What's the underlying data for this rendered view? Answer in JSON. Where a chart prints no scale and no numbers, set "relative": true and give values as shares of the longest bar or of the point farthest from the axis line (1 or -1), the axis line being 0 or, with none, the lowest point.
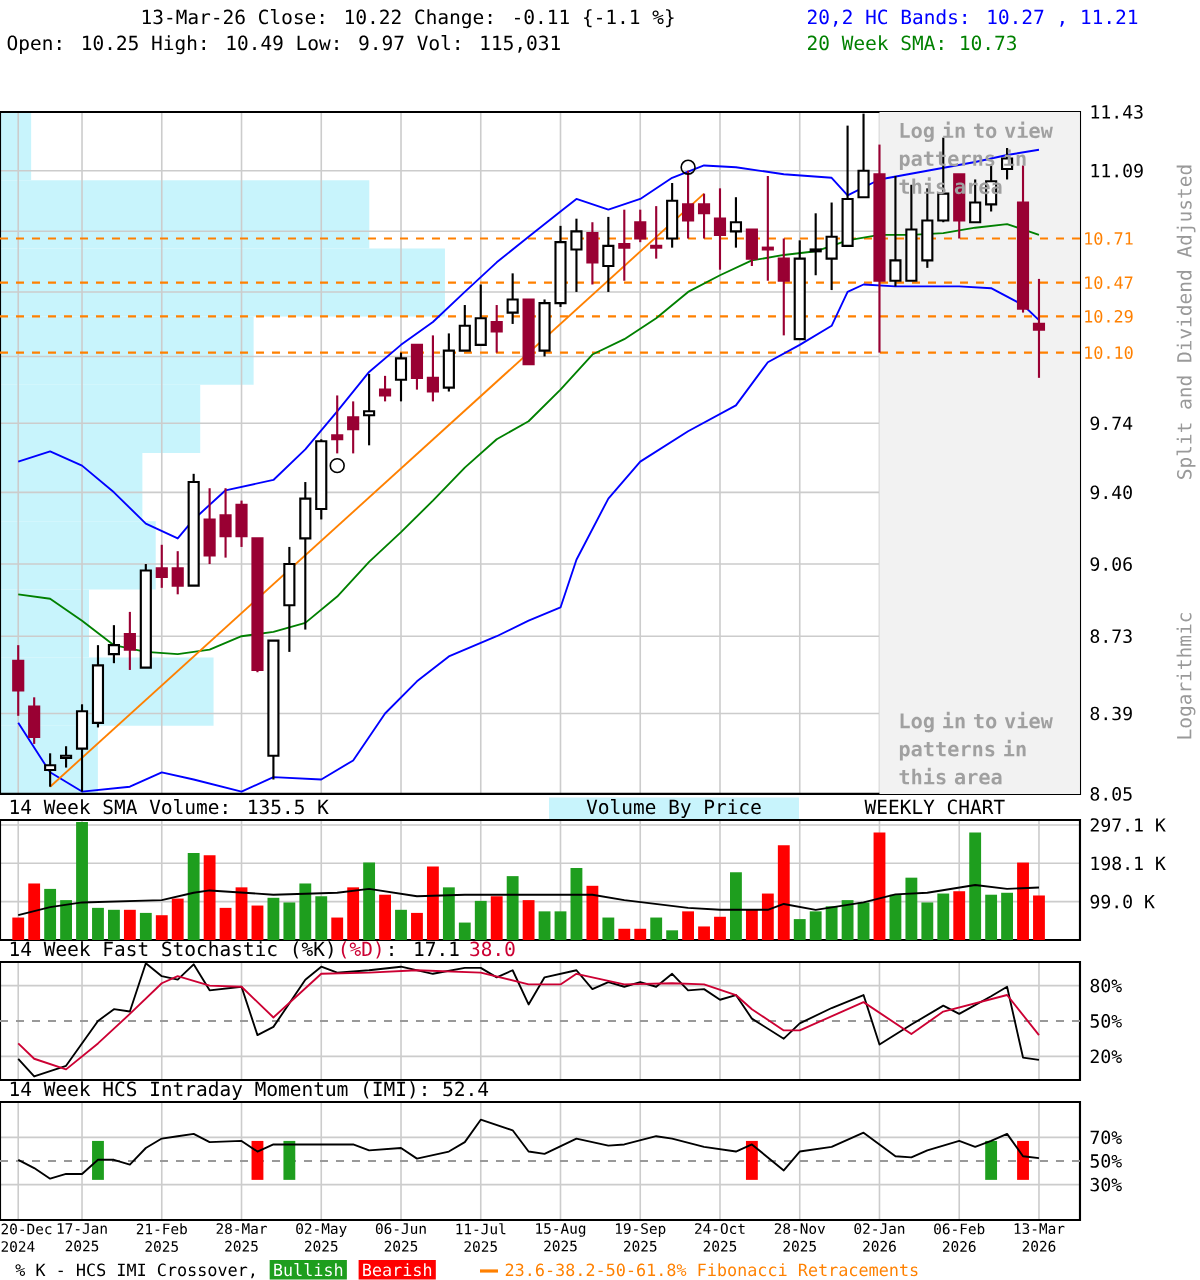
{
  "chart_data": [
    {
      "type": "candlestick",
      "title": "13-Mar-26 Close: 10.22 Change: -0.11 {-1.1 %}",
      "subtitle": "Open: 10.25 High: 10.49 Low: 9.97 Vol: 115,031",
      "ylabel": "Split and Dividend Adjusted",
      "annotations": [
        "Log in to view patterns in this area",
        "Logarithmic"
      ],
      "log": true,
      "grid": true,
      "tick_labels": "y",
      "xlim": [
        "2024-12-12",
        "2026-03-31"
      ],
      "xticks": [
        {
          "value": "2024-12-20",
          "label": null
        },
        {
          "value": "2025-01-17",
          "label": null
        },
        {
          "value": "2025-02-21",
          "label": null
        },
        {
          "value": "2025-03-28",
          "label": null
        },
        {
          "value": "2025-05-02",
          "label": null
        },
        {
          "value": "2025-06-06",
          "label": null
        },
        {
          "value": "2025-07-11",
          "label": null
        },
        {
          "value": "2025-08-15",
          "label": null
        },
        {
          "value": "2025-09-19",
          "label": null
        },
        {
          "value": "2025-10-24",
          "label": null
        },
        {
          "value": "2025-11-28",
          "label": null
        },
        {
          "value": "2026-01-02",
          "label": null
        },
        {
          "value": "2026-02-06",
          "label": null
        },
        {
          "value": "2026-03-13",
          "label": null
        }
      ],
      "ylim": [
        8.05,
        11.43
      ],
      "yticks": [
        11.43,
        11.09,
        {
          "value": 10.75,
          "label": null
        },
        {
          "value": 10.42,
          "label": null
        },
        {
          "value": 10.08,
          "label": null
        },
        9.74,
        {
          "value": 9.4,
          "label": "9.40"
        },
        9.06,
        8.73,
        8.39,
        8.05
      ],
      "ref_lines": [
        {
          "axis": "y",
          "value": 10.71,
          "label": "10.71",
          "color": "#ff8000",
          "line_style": "dashed"
        },
        {
          "axis": "y",
          "value": 10.47,
          "label": "10.47",
          "color": "#ff8000",
          "line_style": "dashed"
        },
        {
          "axis": "y",
          "value": 10.29,
          "label": "10.29",
          "color": "#ff8000",
          "line_style": "dashed"
        },
        {
          "axis": "y",
          "value": 10.1,
          "label": "10.10",
          "color": "#ff8000",
          "line_style": "dashed"
        }
      ],
      "bands": [
        {
          "axis": "x",
          "from": "2026-01-02",
          "to": "2026-03-31",
          "label": "Log in to view patterns in this area",
          "color": "#f2f2f2"
        }
      ],
      "series": [
        {
          "type": "candlestick",
          "colors": [
            "#990033",
            "#990033",
            "#ffffff",
            "#ffffff",
            "#ffffff",
            "#ffffff",
            "#ffffff",
            "#990033",
            "#ffffff",
            "#990033",
            "#990033",
            "#ffffff",
            "#990033",
            "#990033",
            "#990033",
            "#990033",
            "#ffffff",
            "#ffffff",
            "#ffffff",
            "#ffffff",
            "#990033",
            "#990033",
            "#ffffff",
            "#990033",
            "#ffffff",
            "#990033",
            "#990033",
            "#ffffff",
            "#ffffff",
            "#ffffff",
            "#990033",
            "#ffffff",
            "#990033",
            "#ffffff",
            "#ffffff",
            "#ffffff",
            "#990033",
            "#ffffff",
            "#990033",
            "#990033",
            "#990033",
            "#ffffff",
            "#990033",
            "#990033",
            "#990033",
            "#ffffff",
            "#990033",
            "#990033",
            "#990033",
            "#ffffff",
            "#ffffff",
            "#ffffff",
            "#ffffff",
            "#ffffff",
            "#990033",
            "#ffffff",
            "#ffffff",
            "#ffffff",
            "#ffffff",
            "#990033",
            "#ffffff",
            "#ffffff",
            "#ffffff",
            "#990033",
            "#990033"
          ],
          "x": [
            "2024-12-20",
            "2024-12-27",
            "2025-01-03",
            "2025-01-10",
            "2025-01-17",
            "2025-01-24",
            "2025-01-31",
            "2025-02-07",
            "2025-02-14",
            "2025-02-21",
            "2025-02-28",
            "2025-03-07",
            "2025-03-14",
            "2025-03-21",
            "2025-03-28",
            "2025-04-04",
            "2025-04-11",
            "2025-04-18",
            "2025-04-25",
            "2025-05-02",
            "2025-05-09",
            "2025-05-16",
            "2025-05-23",
            "2025-05-30",
            "2025-06-06",
            "2025-06-13",
            "2025-06-20",
            "2025-06-27",
            "2025-07-04",
            "2025-07-11",
            "2025-07-18",
            "2025-07-25",
            "2025-08-01",
            "2025-08-08",
            "2025-08-15",
            "2025-08-22",
            "2025-08-29",
            "2025-09-05",
            "2025-09-12",
            "2025-09-19",
            "2025-09-26",
            "2025-10-03",
            "2025-10-10",
            "2025-10-17",
            "2025-10-24",
            "2025-10-31",
            "2025-11-07",
            "2025-11-14",
            "2025-11-21",
            "2025-11-28",
            "2025-12-05",
            "2025-12-12",
            "2025-12-19",
            "2025-12-26",
            "2026-01-02",
            "2026-01-09",
            "2026-01-16",
            "2026-01-23",
            "2026-01-30",
            "2026-02-06",
            "2026-02-13",
            "2026-02-20",
            "2026-02-27",
            "2026-03-06",
            "2026-03-13"
          ],
          "ohlc": [
            [
              8.62,
              8.69,
              8.38,
              8.49
            ],
            [
              8.42,
              8.46,
              8.26,
              8.29
            ],
            [
              8.15,
              8.22,
              8.08,
              8.17
            ],
            [
              8.2,
              8.25,
              8.16,
              8.21
            ],
            [
              8.24,
              8.43,
              8.06,
              8.4
            ],
            [
              8.35,
              8.69,
              8.33,
              8.6
            ],
            [
              8.65,
              8.78,
              8.61,
              8.69
            ],
            [
              8.74,
              8.84,
              8.58,
              8.67
            ],
            [
              8.59,
              9.06,
              8.59,
              9.03
            ],
            [
              9.04,
              9.15,
              8.95,
              9.0
            ],
            [
              9.04,
              9.12,
              8.92,
              8.96
            ],
            [
              8.96,
              9.49,
              8.96,
              9.45
            ],
            [
              9.27,
              9.42,
              9.06,
              9.1
            ],
            [
              9.29,
              9.42,
              9.09,
              9.19
            ],
            [
              9.34,
              9.36,
              9.14,
              9.19
            ],
            [
              9.18,
              9.18,
              8.57,
              8.58
            ],
            [
              8.21,
              8.71,
              8.11,
              8.71
            ],
            [
              8.87,
              9.14,
              8.66,
              9.06
            ],
            [
              9.18,
              9.45,
              8.76,
              9.37
            ],
            [
              9.32,
              9.66,
              9.27,
              9.65
            ],
            [
              9.68,
              9.88,
              9.59,
              9.66
            ],
            [
              9.77,
              9.85,
              9.59,
              9.71
            ],
            [
              9.78,
              9.99,
              9.63,
              9.8
            ],
            [
              9.91,
              9.98,
              9.85,
              9.88
            ],
            [
              9.96,
              10.1,
              9.85,
              10.07
            ],
            [
              10.14,
              10.14,
              9.91,
              9.97
            ],
            [
              9.97,
              10.19,
              9.85,
              9.9
            ],
            [
              9.92,
              10.2,
              9.9,
              10.11
            ],
            [
              10.11,
              10.35,
              10.11,
              10.24
            ],
            [
              10.14,
              10.46,
              10.14,
              10.28
            ],
            [
              10.26,
              10.35,
              10.1,
              10.21
            ],
            [
              10.31,
              10.52,
              10.25,
              10.38
            ],
            [
              10.38,
              10.38,
              10.04,
              10.04
            ],
            [
              10.11,
              10.38,
              10.08,
              10.36
            ],
            [
              10.36,
              10.78,
              10.34,
              10.69
            ],
            [
              10.65,
              10.82,
              10.42,
              10.75
            ],
            [
              10.74,
              10.8,
              10.46,
              10.58
            ],
            [
              10.56,
              10.83,
              10.42,
              10.67
            ],
            [
              10.68,
              10.87,
              10.48,
              10.66
            ],
            [
              10.8,
              10.87,
              10.69,
              10.71
            ],
            [
              10.67,
              10.89,
              10.6,
              10.66
            ],
            [
              10.71,
              11.02,
              10.66,
              10.92
            ],
            [
              10.9,
              11.09,
              10.71,
              10.81
            ],
            [
              10.9,
              10.96,
              10.71,
              10.85
            ],
            [
              10.82,
              10.99,
              10.54,
              10.73
            ],
            [
              10.75,
              10.94,
              10.66,
              10.8
            ],
            [
              10.76,
              10.76,
              10.56,
              10.6
            ],
            [
              10.66,
              11.06,
              10.48,
              10.65
            ],
            [
              10.6,
              10.71,
              10.19,
              10.48
            ],
            [
              10.17,
              10.7,
              10.17,
              10.6
            ],
            [
              10.64,
              10.85,
              10.51,
              10.65
            ],
            [
              10.6,
              10.91,
              10.43,
              10.72
            ],
            [
              10.67,
              11.35,
              10.67,
              10.93
            ],
            [
              10.94,
              11.42,
              10.94,
              11.09
            ],
            [
              11.07,
              11.24,
              10.1,
              10.48
            ],
            [
              10.48,
              11.06,
              10.45,
              10.59
            ],
            [
              10.48,
              11.01,
              10.48,
              10.76
            ],
            [
              10.59,
              10.99,
              10.55,
              10.81
            ],
            [
              10.81,
              11.28,
              10.8,
              10.96
            ],
            [
              11.07,
              11.07,
              10.71,
              10.81
            ],
            [
              10.8,
              11.04,
              10.8,
              10.91
            ],
            [
              10.9,
              11.12,
              10.86,
              11.03
            ],
            [
              11.1,
              11.22,
              11.04,
              11.16
            ],
            [
              10.91,
              11.12,
              10.31,
              10.33
            ],
            [
              10.25,
              10.49,
              9.97,
              10.22
            ]
          ]
        },
        {
          "name": "20,2 HC Bands: 10.27 , 11.21",
          "type": "line",
          "color": "#0000ff",
          "x": [
            "2024-12-20",
            "2025-01-03",
            "2025-01-17",
            "2025-01-31",
            "2025-02-14",
            "2025-02-28",
            "2025-03-07",
            "2025-03-21",
            "2025-04-11",
            "2025-04-25",
            "2025-05-09",
            "2025-05-23",
            "2025-06-06",
            "2025-06-20",
            "2025-07-04",
            "2025-07-18",
            "2025-08-01",
            "2025-08-15",
            "2025-08-22",
            "2025-09-05",
            "2025-09-19",
            "2025-10-03",
            "2025-10-17",
            "2025-10-31",
            "2025-11-21",
            "2025-12-12",
            "2025-12-19",
            "2026-01-02",
            "2026-01-23",
            "2026-02-13",
            "2026-02-27",
            "2026-03-13"
          ],
          "values": [
            9.55,
            9.6,
            9.53,
            9.4,
            9.25,
            9.18,
            9.27,
            9.41,
            9.46,
            9.61,
            9.8,
            10.0,
            10.14,
            10.26,
            10.42,
            10.58,
            10.72,
            10.86,
            10.93,
            10.87,
            10.93,
            11.05,
            11.12,
            11.11,
            11.07,
            11.05,
            10.95,
            11.04,
            11.09,
            11.14,
            11.18,
            11.21
          ]
        },
        {
          "type": "line",
          "color": "#0000ff",
          "x": [
            "2024-12-20",
            "2025-01-03",
            "2025-01-17",
            "2025-02-07",
            "2025-02-21",
            "2025-03-07",
            "2025-03-28",
            "2025-04-11",
            "2025-05-02",
            "2025-05-16",
            "2025-05-30",
            "2025-06-13",
            "2025-06-27",
            "2025-07-18",
            "2025-08-01",
            "2025-08-15",
            "2025-08-22",
            "2025-09-05",
            "2025-09-19",
            "2025-10-10",
            "2025-10-31",
            "2025-11-14",
            "2025-11-28",
            "2025-12-12",
            "2025-12-19",
            "2025-12-26",
            "2026-01-09",
            "2026-02-06",
            "2026-02-20",
            "2026-03-06",
            "2026-03-13"
          ],
          "values": [
            8.35,
            8.14,
            8.06,
            8.08,
            8.14,
            8.11,
            8.06,
            8.12,
            8.11,
            8.19,
            8.39,
            8.53,
            8.64,
            8.73,
            8.8,
            8.86,
            9.08,
            9.37,
            9.55,
            9.7,
            9.83,
            10.05,
            10.14,
            10.24,
            10.42,
            10.46,
            10.45,
            10.45,
            10.44,
            10.35,
            10.27
          ]
        },
        {
          "name": "20 Week SMA: 10.73",
          "type": "line",
          "color": "#008000",
          "x": [
            "2024-12-20",
            "2025-01-03",
            "2025-01-17",
            "2025-01-31",
            "2025-02-14",
            "2025-02-28",
            "2025-03-14",
            "2025-03-28",
            "2025-04-11",
            "2025-04-25",
            "2025-05-09",
            "2025-05-23",
            "2025-06-06",
            "2025-06-20",
            "2025-07-04",
            "2025-07-18",
            "2025-08-01",
            "2025-08-15",
            "2025-08-29",
            "2025-09-12",
            "2025-09-26",
            "2025-10-10",
            "2025-10-24",
            "2025-11-07",
            "2025-11-21",
            "2025-12-05",
            "2025-12-19",
            "2026-01-02",
            "2026-01-16",
            "2026-01-30",
            "2026-02-13",
            "2026-02-27",
            "2026-03-13"
          ],
          "values": [
            8.92,
            8.9,
            8.8,
            8.69,
            8.66,
            8.65,
            8.67,
            8.73,
            8.75,
            8.79,
            8.91,
            9.07,
            9.21,
            9.36,
            9.52,
            9.66,
            9.75,
            9.91,
            10.09,
            10.17,
            10.28,
            10.42,
            10.51,
            10.59,
            10.62,
            10.64,
            10.7,
            10.73,
            10.73,
            10.74,
            10.77,
            10.79,
            10.73
          ]
        },
        {
          "name": "23.6-38.2-50-61.8% Fibonacci Retracements",
          "type": "line",
          "color": "#ff8000",
          "x": [
            "2025-01-03",
            "2025-10-17"
          ],
          "values": [
            8.08,
            10.96
          ]
        },
        {
          "type": "scatter",
          "marker": "circle",
          "color": "#000000",
          "x": [
            "2025-05-09",
            "2025-10-10"
          ],
          "values": [
            9.53,
            11.11
          ]
        }
      ]
    },
    {
      "type": "bar",
      "annotations": [
        "WEEKLY CHART"
      ],
      "grid": true,
      "tick_labels": "y",
      "xlim": [
        "2024-12-12",
        "2026-03-31"
      ],
      "xticks": [
        {
          "value": "2024-12-20",
          "label": null
        },
        {
          "value": "2025-01-17",
          "label": null
        },
        {
          "value": "2025-02-21",
          "label": null
        },
        {
          "value": "2025-03-28",
          "label": null
        },
        {
          "value": "2025-05-02",
          "label": null
        },
        {
          "value": "2025-06-06",
          "label": null
        },
        {
          "value": "2025-07-11",
          "label": null
        },
        {
          "value": "2025-08-15",
          "label": null
        },
        {
          "value": "2025-09-19",
          "label": null
        },
        {
          "value": "2025-10-24",
          "label": null
        },
        {
          "value": "2025-11-28",
          "label": null
        },
        {
          "value": "2026-01-02",
          "label": null
        },
        {
          "value": "2026-02-06",
          "label": null
        },
        {
          "value": "2026-03-13",
          "label": null
        }
      ],
      "ylim": [
        0,
        310
      ],
      "yticks": [
        {
          "value": 99,
          "label": "99.0 K"
        },
        {
          "value": 198.1,
          "label": "198.1 K"
        },
        {
          "value": 297.1,
          "label": "297.1 K"
        }
      ],
      "series": [
        {
          "type": "bar",
          "x": [
            "2024-12-20",
            "2024-12-27",
            "2025-01-03",
            "2025-01-10",
            "2025-01-17",
            "2025-01-24",
            "2025-01-31",
            "2025-02-07",
            "2025-02-14",
            "2025-02-21",
            "2025-02-28",
            "2025-03-07",
            "2025-03-14",
            "2025-03-21",
            "2025-03-28",
            "2025-04-04",
            "2025-04-11",
            "2025-04-18",
            "2025-04-25",
            "2025-05-02",
            "2025-05-09",
            "2025-05-16",
            "2025-05-23",
            "2025-05-30",
            "2025-06-06",
            "2025-06-13",
            "2025-06-20",
            "2025-06-27",
            "2025-07-04",
            "2025-07-11",
            "2025-07-18",
            "2025-07-25",
            "2025-08-01",
            "2025-08-08",
            "2025-08-15",
            "2025-08-22",
            "2025-08-29",
            "2025-09-05",
            "2025-09-12",
            "2025-09-19",
            "2025-09-26",
            "2025-10-03",
            "2025-10-10",
            "2025-10-17",
            "2025-10-24",
            "2025-10-31",
            "2025-11-07",
            "2025-11-14",
            "2025-11-21",
            "2025-11-28",
            "2025-12-05",
            "2025-12-12",
            "2025-12-19",
            "2025-12-26",
            "2026-01-02",
            "2026-01-09",
            "2026-01-16",
            "2026-01-23",
            "2026-01-30",
            "2026-02-06",
            "2026-02-13",
            "2026-02-20",
            "2026-02-27",
            "2026-03-06",
            "2026-03-13"
          ],
          "values": [
            58,
            146,
            132,
            103,
            305,
            83,
            78,
            78,
            70,
            64,
            107,
            225,
            219,
            83,
            136,
            89,
            109,
            97,
            146,
            113,
            58,
            136,
            200,
            117,
            78,
            70,
            190,
            136,
            45,
            101,
            113,
            165,
            103,
            74,
            74,
            186,
            140,
            58,
            29,
            29,
            58,
            25,
            74,
            35,
            60,
            175,
            78,
            120,
            245,
            54,
            74,
            87,
            103,
            97,
            278,
            117,
            161,
            97,
            120,
            126,
            278,
            117,
            122,
            200,
            115
          ],
          "colors": [
            "#ff0000",
            "#ff0000",
            "#1e9e1e",
            "#1e9e1e",
            "#1e9e1e",
            "#1e9e1e",
            "#1e9e1e",
            "#ff0000",
            "#1e9e1e",
            "#ff0000",
            "#ff0000",
            "#1e9e1e",
            "#ff0000",
            "#ff0000",
            "#ff0000",
            "#ff0000",
            "#1e9e1e",
            "#1e9e1e",
            "#1e9e1e",
            "#1e9e1e",
            "#ff0000",
            "#ff0000",
            "#1e9e1e",
            "#ff0000",
            "#1e9e1e",
            "#ff0000",
            "#ff0000",
            "#1e9e1e",
            "#1e9e1e",
            "#1e9e1e",
            "#ff0000",
            "#1e9e1e",
            "#ff0000",
            "#1e9e1e",
            "#1e9e1e",
            "#1e9e1e",
            "#ff0000",
            "#1e9e1e",
            "#ff0000",
            "#ff0000",
            "#1e9e1e",
            "#1e9e1e",
            "#ff0000",
            "#ff0000",
            "#ff0000",
            "#1e9e1e",
            "#ff0000",
            "#ff0000",
            "#ff0000",
            "#1e9e1e",
            "#1e9e1e",
            "#1e9e1e",
            "#1e9e1e",
            "#1e9e1e",
            "#ff0000",
            "#1e9e1e",
            "#1e9e1e",
            "#1e9e1e",
            "#1e9e1e",
            "#ff0000",
            "#1e9e1e",
            "#1e9e1e",
            "#1e9e1e",
            "#ff0000",
            "#ff0000"
          ]
        },
        {
          "name": "14 Week SMA Volume: 135.5 K",
          "type": "line",
          "color": "#000000",
          "x": [
            "2024-12-20",
            "2025-01-03",
            "2025-01-17",
            "2025-02-21",
            "2025-03-07",
            "2025-03-14",
            "2025-04-11",
            "2025-05-09",
            "2025-05-23",
            "2025-06-13",
            "2025-07-04",
            "2025-08-01",
            "2025-08-29",
            "2025-09-12",
            "2025-10-10",
            "2025-10-24",
            "2025-11-14",
            "2025-11-21",
            "2025-12-05",
            "2025-12-26",
            "2026-01-09",
            "2026-01-23",
            "2026-02-13",
            "2026-02-27",
            "2026-03-13"
          ],
          "values": [
            64,
            85,
            97,
            103,
            122,
            128,
            117,
            122,
            132,
            113,
            117,
            117,
            117,
            103,
            83,
            78,
            78,
            93,
            78,
            97,
            118,
            122,
            142,
            132,
            135.5
          ]
        }
      ]
    },
    {
      "type": "line",
      "annotations": [
        ": 17.1",
        "38.0"
      ],
      "grid": true,
      "tick_labels": "y",
      "xlim": [
        "2024-12-12",
        "2026-03-31"
      ],
      "xticks": [
        {
          "value": "2024-12-20",
          "label": null
        },
        {
          "value": "2025-01-17",
          "label": null
        },
        {
          "value": "2025-02-21",
          "label": null
        },
        {
          "value": "2025-03-28",
          "label": null
        },
        {
          "value": "2025-05-02",
          "label": null
        },
        {
          "value": "2025-06-06",
          "label": null
        },
        {
          "value": "2025-07-11",
          "label": null
        },
        {
          "value": "2025-08-15",
          "label": null
        },
        {
          "value": "2025-09-19",
          "label": null
        },
        {
          "value": "2025-10-24",
          "label": null
        },
        {
          "value": "2025-11-28",
          "label": null
        },
        {
          "value": "2026-01-02",
          "label": null
        },
        {
          "value": "2026-02-06",
          "label": null
        },
        {
          "value": "2026-03-13",
          "label": null
        }
      ],
      "ylim": [
        0,
        100
      ],
      "yticks": [
        {
          "value": 20,
          "label": "20%"
        },
        {
          "value": 50,
          "label": "50%"
        },
        {
          "value": 80,
          "label": "80%"
        }
      ],
      "ref_lines": [
        {
          "axis": "y",
          "value": 50,
          "color": "#999999",
          "line_style": "dashed"
        }
      ],
      "series": [
        {
          "name": "14 Week Fast Stochastic (%K)",
          "color": "#000000",
          "x": [
            "2024-12-20",
            "2024-12-27",
            "2025-01-10",
            "2025-01-24",
            "2025-01-31",
            "2025-02-07",
            "2025-02-14",
            "2025-02-21",
            "2025-02-28",
            "2025-03-07",
            "2025-03-14",
            "2025-03-28",
            "2025-04-04",
            "2025-04-11",
            "2025-04-25",
            "2025-05-02",
            "2025-05-09",
            "2025-05-23",
            "2025-06-06",
            "2025-06-20",
            "2025-07-04",
            "2025-07-11",
            "2025-07-18",
            "2025-07-25",
            "2025-08-01",
            "2025-08-08",
            "2025-08-22",
            "2025-08-29",
            "2025-09-05",
            "2025-09-12",
            "2025-09-19",
            "2025-09-26",
            "2025-10-03",
            "2025-10-10",
            "2025-10-17",
            "2025-10-24",
            "2025-10-31",
            "2025-11-07",
            "2025-11-21",
            "2025-11-28",
            "2025-12-12",
            "2025-12-26",
            "2026-01-02",
            "2026-01-16",
            "2026-01-30",
            "2026-02-06",
            "2026-02-20",
            "2026-02-27",
            "2026-03-06",
            "2026-03-13"
          ],
          "values": [
            18,
            3,
            12,
            50,
            60,
            58,
            99,
            88,
            85,
            98,
            76,
            79,
            38,
            45,
            85,
            96,
            91,
            93,
            96,
            90,
            95,
            95,
            87,
            93,
            64,
            87,
            93,
            77,
            83,
            79,
            83,
            79,
            90,
            76,
            77,
            68,
            72,
            52,
            35,
            48,
            61,
            72,
            30,
            47,
            63,
            56,
            71,
            79,
            19,
            17.1
          ]
        },
        {
          "name": "(%D)",
          "color": "#cc0033",
          "x": [
            "2024-12-20",
            "2024-12-27",
            "2025-01-10",
            "2025-01-24",
            "2025-02-07",
            "2025-02-21",
            "2025-02-28",
            "2025-03-14",
            "2025-03-28",
            "2025-04-11",
            "2025-05-02",
            "2025-05-23",
            "2025-06-13",
            "2025-07-11",
            "2025-08-01",
            "2025-08-15",
            "2025-08-22",
            "2025-09-12",
            "2025-10-03",
            "2025-10-17",
            "2025-10-31",
            "2025-11-07",
            "2025-11-21",
            "2025-11-28",
            "2025-12-26",
            "2026-01-16",
            "2026-01-30",
            "2026-02-27",
            "2026-03-13"
          ],
          "values": [
            31,
            18,
            9,
            31,
            56,
            82,
            88,
            80,
            79,
            53,
            90,
            91,
            93,
            91,
            81,
            81,
            90,
            81,
            82,
            81,
            72,
            60,
            42,
            42,
            66,
            39,
            58,
            72,
            38.0
          ]
        }
      ]
    },
    {
      "type": "line",
      "annotations": [
        "% K - HCS IMI Crossover,"
      ],
      "grid": true,
      "xlim": [
        "2024-12-12",
        "2026-03-31"
      ],
      "xticks": [
        {
          "value": "2024-12-20",
          "label": "20-Dec 2024"
        },
        {
          "value": "2025-01-17",
          "label": "17-Jan 2025"
        },
        {
          "value": "2025-02-21",
          "label": "21-Feb 2025"
        },
        {
          "value": "2025-03-28",
          "label": "28-Mar 2025"
        },
        {
          "value": "2025-05-02",
          "label": "02-May 2025"
        },
        {
          "value": "2025-06-06",
          "label": "06-Jun 2025"
        },
        {
          "value": "2025-07-11",
          "label": "11-Jul 2025"
        },
        {
          "value": "2025-08-15",
          "label": "15-Aug 2025"
        },
        {
          "value": "2025-09-19",
          "label": "19-Sep 2025"
        },
        {
          "value": "2025-10-24",
          "label": "24-Oct 2025"
        },
        {
          "value": "2025-11-28",
          "label": "28-Nov 2025"
        },
        {
          "value": "2026-01-02",
          "label": "02-Jan 2026"
        },
        {
          "value": "2026-02-06",
          "label": "06-Feb 2026"
        },
        {
          "value": "2026-03-13",
          "label": "13-Mar 2026"
        }
      ],
      "ylim": [
        0,
        100
      ],
      "yticks": [
        {
          "value": 30,
          "label": "30%"
        },
        {
          "value": 50,
          "label": "50%"
        },
        {
          "value": 70,
          "label": "70%"
        }
      ],
      "ref_lines": [
        {
          "axis": "y",
          "value": 50,
          "color": "#999999",
          "line_style": "dashed"
        }
      ],
      "series": [
        {
          "name": "14 Week HCS Intraday Momentum (IMI): 52.4",
          "color": "#000000",
          "x": [
            "2024-12-20",
            "2024-12-27",
            "2025-01-03",
            "2025-01-10",
            "2025-01-17",
            "2025-01-24",
            "2025-01-31",
            "2025-02-07",
            "2025-02-14",
            "2025-02-21",
            "2025-02-28",
            "2025-03-07",
            "2025-03-14",
            "2025-03-28",
            "2025-04-04",
            "2025-04-11",
            "2025-04-25",
            "2025-05-16",
            "2025-05-23",
            "2025-06-06",
            "2025-06-13",
            "2025-06-27",
            "2025-07-04",
            "2025-07-11",
            "2025-07-25",
            "2025-08-01",
            "2025-08-08",
            "2025-08-22",
            "2025-09-05",
            "2025-09-12",
            "2025-09-26",
            "2025-10-03",
            "2025-10-17",
            "2025-10-31",
            "2025-11-07",
            "2025-11-21",
            "2025-11-28",
            "2025-12-12",
            "2025-12-26",
            "2026-01-09",
            "2026-01-16",
            "2026-01-23",
            "2026-02-06",
            "2026-02-13",
            "2026-02-20",
            "2026-02-27",
            "2026-03-06",
            "2026-03-13"
          ],
          "values": [
            51,
            44,
            35,
            39,
            39,
            51,
            51,
            47,
            61,
            69,
            71,
            73,
            66,
            67,
            58,
            64,
            64,
            64,
            59,
            61,
            52,
            58,
            66,
            85,
            76,
            58,
            56,
            69,
            63,
            64,
            71,
            69,
            62,
            58,
            64,
            42,
            58,
            62,
            74,
            54,
            53,
            59,
            67,
            62,
            67,
            73,
            54,
            52.4
          ]
        },
        {
          "name": "Bullish",
          "type": "bar",
          "color": "#1e9e1e",
          "x": [
            "2025-01-24",
            "2025-04-18",
            "2026-02-20"
          ],
          "base": [
            34,
            34,
            34
          ],
          "values": [
            33,
            33,
            33
          ]
        },
        {
          "name": "Bearish",
          "type": "bar",
          "color": "#ff0000",
          "x": [
            "2025-04-04",
            "2025-11-07",
            "2026-03-06"
          ],
          "base": [
            34,
            34,
            34
          ],
          "values": [
            33,
            33,
            33
          ]
        }
      ]
    },
    {
      "type": "bar",
      "orientation": "horizontal",
      "relative": true,
      "categories": [
        null,
        null,
        null,
        null,
        null,
        null,
        null,
        null,
        null,
        null
      ],
      "series": [
        {
          "name": "Volume By Price",
          "color": "#c8f4fc",
          "values": [
            0.07,
            0.83,
            1,
            0.57,
            0.45,
            0.32,
            0.35,
            0.2,
            0.48,
            0.22
          ]
        }
      ]
    }
  ]
}
